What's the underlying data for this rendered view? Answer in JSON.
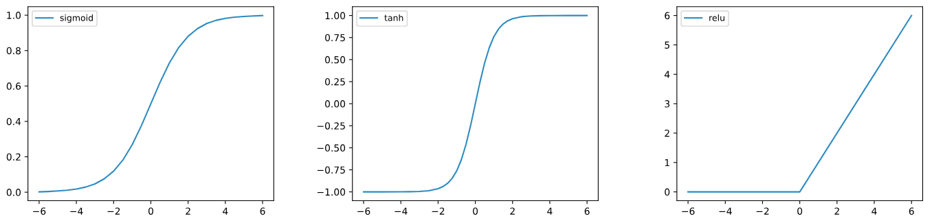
{
  "chart_data": [
    {
      "type": "line",
      "x": [
        -6,
        -5.5,
        -5,
        -4.5,
        -4,
        -3.5,
        -3,
        -2.5,
        -2,
        -1.5,
        -1,
        -0.5,
        0,
        0.5,
        1,
        1.5,
        2,
        2.5,
        3,
        3.5,
        4,
        4.5,
        5,
        5.5,
        6
      ],
      "series": [
        {
          "name": "sigmoid",
          "color": "#2e8bc0",
          "values": [
            0.002,
            0.004,
            0.007,
            0.011,
            0.018,
            0.029,
            0.047,
            0.076,
            0.119,
            0.182,
            0.269,
            0.378,
            0.5,
            0.622,
            0.731,
            0.818,
            0.881,
            0.924,
            0.953,
            0.971,
            0.982,
            0.989,
            0.993,
            0.996,
            0.998
          ]
        }
      ],
      "xlim": [
        -6.6,
        6.6
      ],
      "ylim": [
        -0.048,
        1.048
      ],
      "xticks": [
        {
          "value": -6,
          "label": "−6"
        },
        {
          "value": -4,
          "label": "−4"
        },
        {
          "value": -2,
          "label": "−2"
        },
        0,
        2,
        4,
        6
      ],
      "yticks": [
        {
          "value": 0,
          "label": "0.0"
        },
        0.2,
        0.4,
        0.6,
        0.8,
        {
          "value": 1,
          "label": "1.0"
        }
      ],
      "legend": "top left",
      "line_style": "solid"
    },
    {
      "type": "line",
      "x": [
        -6,
        -5,
        -4,
        -3.5,
        -3,
        -2.5,
        -2,
        -1.75,
        -1.5,
        -1.25,
        -1,
        -0.75,
        -0.5,
        -0.25,
        0,
        0.25,
        0.5,
        0.75,
        1,
        1.25,
        1.5,
        1.75,
        2,
        2.5,
        3,
        3.5,
        4,
        5,
        6
      ],
      "series": [
        {
          "name": "tanh",
          "color": "#2e8bc0",
          "values": [
            -1.0,
            -1.0,
            -0.999,
            -0.998,
            -0.995,
            -0.987,
            -0.964,
            -0.941,
            -0.905,
            -0.848,
            -0.762,
            -0.635,
            -0.462,
            -0.245,
            0,
            0.245,
            0.462,
            0.635,
            0.762,
            0.848,
            0.905,
            0.941,
            0.964,
            0.987,
            0.995,
            0.998,
            0.999,
            1.0,
            1.0
          ]
        }
      ],
      "xlim": [
        -6.6,
        6.6
      ],
      "ylim": [
        -1.1,
        1.1
      ],
      "xticks": [
        {
          "value": -6,
          "label": "−6"
        },
        {
          "value": -4,
          "label": "−4"
        },
        {
          "value": -2,
          "label": "−2"
        },
        0,
        2,
        4,
        6
      ],
      "yticks": [
        {
          "value": -1,
          "label": "−1.00"
        },
        {
          "value": -0.75,
          "label": "−0.75"
        },
        {
          "value": -0.5,
          "label": "−0.50"
        },
        {
          "value": -0.25,
          "label": "−0.25"
        },
        {
          "value": 0,
          "label": "0.00"
        },
        0.25,
        {
          "value": 0.5,
          "label": "0.50"
        },
        0.75,
        {
          "value": 1,
          "label": "1.00"
        }
      ],
      "legend": "top left",
      "line_style": "solid"
    },
    {
      "type": "line",
      "x": [
        -6,
        0,
        6
      ],
      "series": [
        {
          "name": "relu",
          "color": "#2e8bc0",
          "values": [
            0,
            0,
            6
          ]
        }
      ],
      "xlim": [
        -6.6,
        6.6
      ],
      "ylim": [
        -0.3,
        6.3
      ],
      "xticks": [
        {
          "value": -6,
          "label": "−6"
        },
        {
          "value": -4,
          "label": "−4"
        },
        {
          "value": -2,
          "label": "−2"
        },
        0,
        2,
        4,
        6
      ],
      "yticks": [
        0,
        1,
        2,
        3,
        4,
        5,
        6
      ],
      "legend": "top left",
      "line_style": "solid"
    }
  ]
}
